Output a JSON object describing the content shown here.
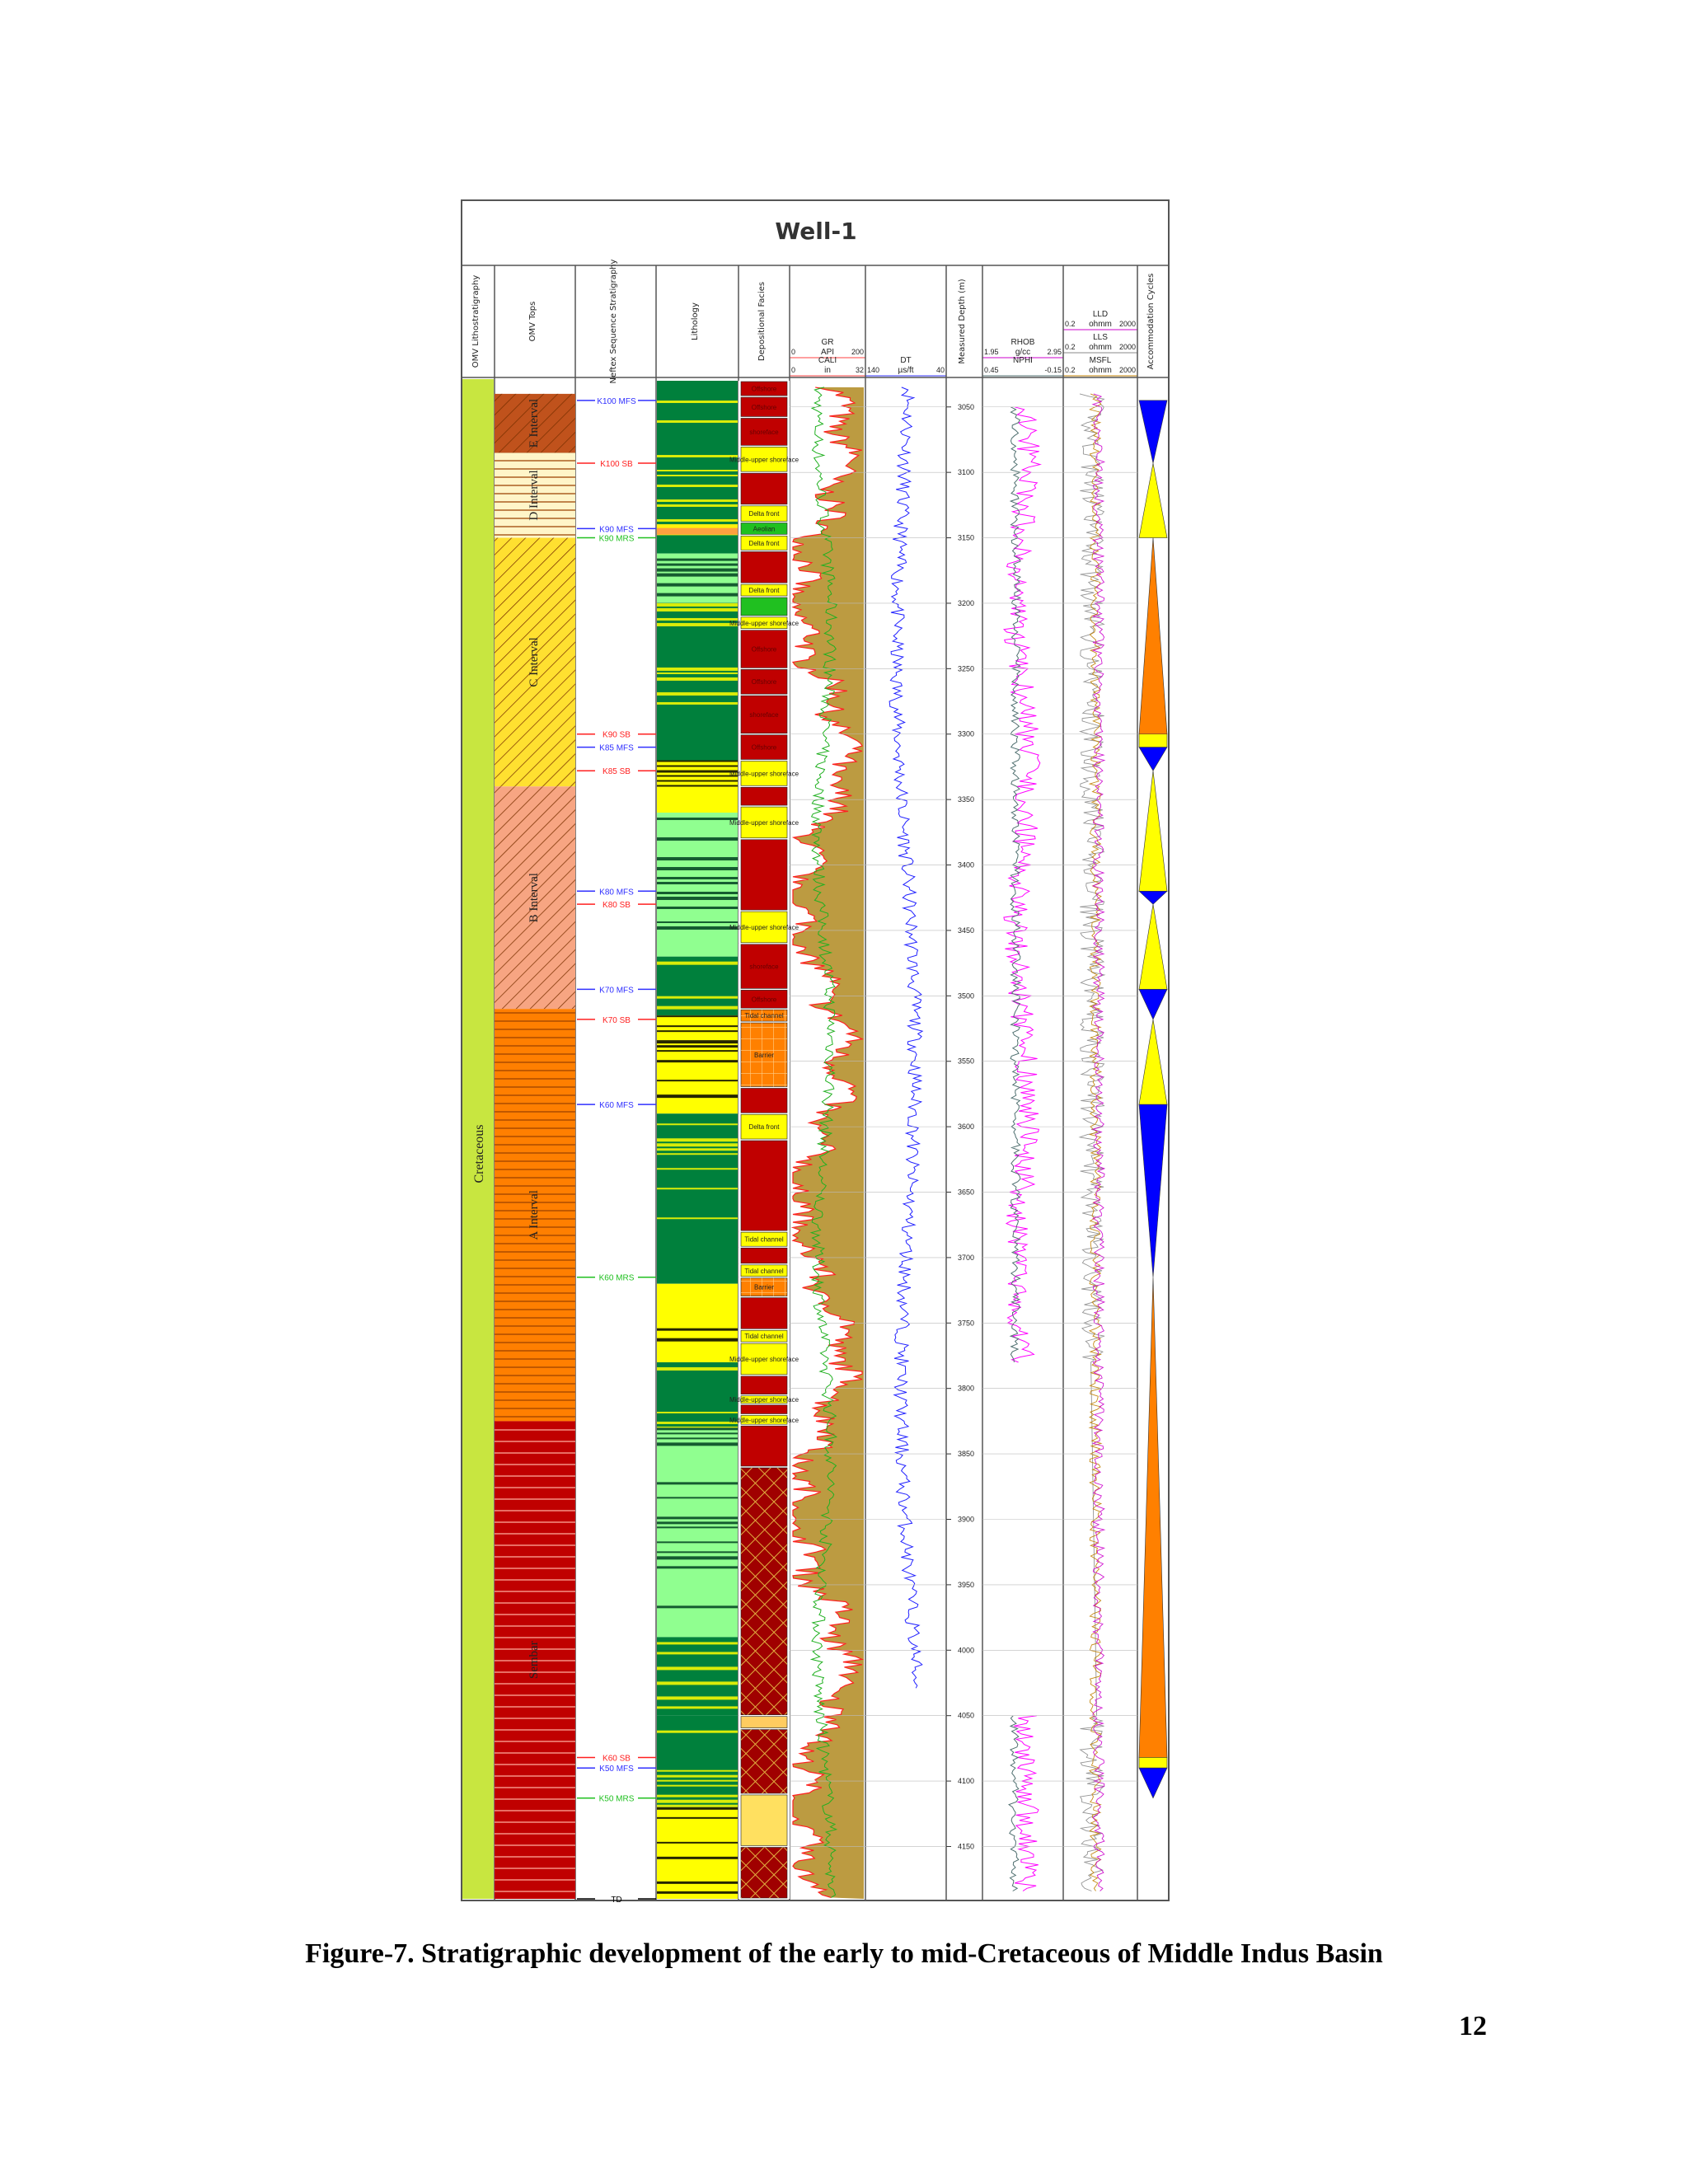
{
  "figure": {
    "title": "Well-1",
    "track_headers": [
      "OMV Lithostratigraphy",
      "OMV Tops",
      "Neftex Sequence Stratigraphy",
      "Lithology",
      "Depositional Facies",
      "",
      "",
      "Measured Depth (m)",
      "",
      "",
      "Accommodation Cycles"
    ],
    "curve_headers": {
      "gr": {
        "name": "GR",
        "unit": "API",
        "min": "0",
        "max": "200"
      },
      "cali": {
        "name": "CALI",
        "unit": "in",
        "min": "0",
        "max": "32"
      },
      "dt": {
        "name": "DT",
        "unit": "µs/ft",
        "min": "140",
        "max": "40"
      },
      "rhob": {
        "name": "RHOB",
        "unit": "g/cc",
        "min": "1.95",
        "max": "2.95"
      },
      "nphi": {
        "name": "NPHI",
        "unit": "",
        "min": "0.45",
        "max": "-0.15"
      },
      "lld": {
        "name": "LLD",
        "unit": "ohmm",
        "min": "0.2",
        "max": "2000"
      },
      "lls": {
        "name": "LLS",
        "unit": "ohmm",
        "min": "0.2",
        "max": "2000"
      },
      "msfl": {
        "name": "MSFL",
        "unit": "ohmm",
        "min": "0.2",
        "max": "2000"
      }
    },
    "lithostrat_label": "Cretaceous",
    "omv_tops": [
      {
        "label": "E Interval",
        "from": 3040,
        "to": 3085,
        "color": "#c0521c",
        "pattern": "hatch"
      },
      {
        "label": "D Interval",
        "from": 3085,
        "to": 3150,
        "color": "#fff5c8",
        "pattern": "lines"
      },
      {
        "label": "C Interval",
        "from": 3150,
        "to": 3340,
        "color": "#ffe030",
        "pattern": "hatch"
      },
      {
        "label": "B Interval",
        "from": 3340,
        "to": 3510,
        "color": "#f7a582",
        "pattern": "hatch"
      },
      {
        "label": "A Interval",
        "from": 3510,
        "to": 3825,
        "color": "#ff7f00",
        "pattern": "lines"
      },
      {
        "label": "Sembar",
        "from": 3825,
        "to": 4190,
        "color": "#c00000",
        "pattern": "lines"
      }
    ],
    "sequence_tops": [
      {
        "label": "K100 MFS",
        "depth": 3045,
        "color": "#3030ff"
      },
      {
        "label": "K100 SB",
        "depth": 3093,
        "color": "#ff2020"
      },
      {
        "label": "K90 MFS",
        "depth": 3143,
        "color": "#3030ff"
      },
      {
        "label": "K90 MRS",
        "depth": 3150,
        "color": "#20c020"
      },
      {
        "label": "K90 SB",
        "depth": 3300,
        "color": "#ff2020"
      },
      {
        "label": "K85 MFS",
        "depth": 3310,
        "color": "#3030ff"
      },
      {
        "label": "K85 SB",
        "depth": 3328,
        "color": "#ff2020"
      },
      {
        "label": "K80 MFS",
        "depth": 3420,
        "color": "#3030ff"
      },
      {
        "label": "K80 SB",
        "depth": 3430,
        "color": "#ff2020"
      },
      {
        "label": "K70 MFS",
        "depth": 3495,
        "color": "#3030ff"
      },
      {
        "label": "K70 SB",
        "depth": 3518,
        "color": "#ff2020"
      },
      {
        "label": "K60 MFS",
        "depth": 3583,
        "color": "#3030ff"
      },
      {
        "label": "K60 MRS",
        "depth": 3715,
        "color": "#20c020"
      },
      {
        "label": "K60 SB",
        "depth": 4082,
        "color": "#ff2020"
      },
      {
        "label": "K50 MFS",
        "depth": 4090,
        "color": "#3030ff"
      },
      {
        "label": "K50 MRS",
        "depth": 4113,
        "color": "#20c020"
      },
      {
        "label": "TD",
        "depth": 4190,
        "color": "#000000"
      }
    ],
    "lithology_blocks": [
      {
        "from": 3030,
        "to": 3140,
        "color": "#00803c"
      },
      {
        "from": 3140,
        "to": 3148,
        "color": "#ffa040"
      },
      {
        "from": 3148,
        "to": 3162,
        "color": "#00803c"
      },
      {
        "from": 3162,
        "to": 3200,
        "color": "#90ff90"
      },
      {
        "from": 3200,
        "to": 3320,
        "color": "#00803c"
      },
      {
        "from": 3320,
        "to": 3360,
        "color": "#ffff00"
      },
      {
        "from": 3360,
        "to": 3470,
        "color": "#90ff90"
      },
      {
        "from": 3470,
        "to": 3515,
        "color": "#00803c"
      },
      {
        "from": 3515,
        "to": 3590,
        "color": "#ffff00"
      },
      {
        "from": 3590,
        "to": 3720,
        "color": "#00803c"
      },
      {
        "from": 3720,
        "to": 3780,
        "color": "#ffff00"
      },
      {
        "from": 3780,
        "to": 3830,
        "color": "#00803c"
      },
      {
        "from": 3830,
        "to": 3990,
        "color": "#90ff90"
      },
      {
        "from": 3990,
        "to": 4050,
        "color": "#00803c"
      },
      {
        "from": 4050,
        "to": 4120,
        "color": "#00803c"
      },
      {
        "from": 4120,
        "to": 4190,
        "color": "#ffff00"
      }
    ],
    "facies": [
      {
        "label": "Offshore",
        "from": 3030,
        "to": 3042,
        "color": "#c00000"
      },
      {
        "label": "Offshore",
        "from": 3042,
        "to": 3058,
        "color": "#c00000"
      },
      {
        "label": "shoreface",
        "from": 3058,
        "to": 3080,
        "color": "#c00000"
      },
      {
        "label": "Middle-upper shoreface",
        "from": 3080,
        "to": 3100,
        "color": "#ffff00"
      },
      {
        "label": "",
        "from": 3100,
        "to": 3125,
        "color": "#c00000"
      },
      {
        "label": "Delta front",
        "from": 3125,
        "to": 3138,
        "color": "#ffff00"
      },
      {
        "label": "Aeolian",
        "from": 3138,
        "to": 3148,
        "color": "#20c020"
      },
      {
        "label": "Delta front",
        "from": 3148,
        "to": 3160,
        "color": "#ffff00"
      },
      {
        "label": "",
        "from": 3160,
        "to": 3185,
        "color": "#c00000"
      },
      {
        "label": "Delta front",
        "from": 3185,
        "to": 3195,
        "color": "#ffff00"
      },
      {
        "label": "",
        "from": 3195,
        "to": 3210,
        "color": "#20c020"
      },
      {
        "label": "Middle-upper shoreface",
        "from": 3210,
        "to": 3220,
        "color": "#ffff00"
      },
      {
        "label": "Offshore",
        "from": 3220,
        "to": 3250,
        "color": "#c00000"
      },
      {
        "label": "Offshore",
        "from": 3250,
        "to": 3270,
        "color": "#c00000"
      },
      {
        "label": "shoreface",
        "from": 3270,
        "to": 3300,
        "color": "#c00000"
      },
      {
        "label": "Offshore",
        "from": 3300,
        "to": 3320,
        "color": "#c00000"
      },
      {
        "label": "Middle-upper shoreface",
        "from": 3320,
        "to": 3340,
        "color": "#ffff00"
      },
      {
        "label": "",
        "from": 3340,
        "to": 3355,
        "color": "#c00000"
      },
      {
        "label": "Middle-upper shoreface",
        "from": 3355,
        "to": 3380,
        "color": "#ffff00"
      },
      {
        "label": "",
        "from": 3380,
        "to": 3435,
        "color": "#c00000"
      },
      {
        "label": "Middle-upper shoreface",
        "from": 3435,
        "to": 3460,
        "color": "#ffff00"
      },
      {
        "label": "shoreface",
        "from": 3460,
        "to": 3495,
        "color": "#c00000"
      },
      {
        "label": "Offshore",
        "from": 3495,
        "to": 3510,
        "color": "#c00000"
      },
      {
        "label": "Tidal channel",
        "from": 3510,
        "to": 3520,
        "color": "#ff8000"
      },
      {
        "label": "Barrier",
        "from": 3520,
        "to": 3570,
        "color": "#ff8000"
      },
      {
        "label": "",
        "from": 3570,
        "to": 3590,
        "color": "#c00000"
      },
      {
        "label": "Delta front",
        "from": 3590,
        "to": 3610,
        "color": "#ffff00"
      },
      {
        "label": "",
        "from": 3610,
        "to": 3680,
        "color": "#c00000"
      },
      {
        "label": "Tidal channel",
        "from": 3680,
        "to": 3692,
        "color": "#ffff00"
      },
      {
        "label": "",
        "from": 3692,
        "to": 3705,
        "color": "#c00000"
      },
      {
        "label": "Tidal channel",
        "from": 3705,
        "to": 3715,
        "color": "#ffff00"
      },
      {
        "label": "Barrier",
        "from": 3715,
        "to": 3730,
        "color": "#ff8000"
      },
      {
        "label": "",
        "from": 3730,
        "to": 3755,
        "color": "#c00000"
      },
      {
        "label": "Tidal channel",
        "from": 3755,
        "to": 3765,
        "color": "#ffff00"
      },
      {
        "label": "Middle-upper shoreface",
        "from": 3765,
        "to": 3790,
        "color": "#ffff00"
      },
      {
        "label": "",
        "from": 3790,
        "to": 3805,
        "color": "#c00000"
      },
      {
        "label": "Middle-upper shoreface",
        "from": 3805,
        "to": 3812,
        "color": "#ffff00"
      },
      {
        "label": "",
        "from": 3812,
        "to": 3820,
        "color": "#c00000"
      },
      {
        "label": "Middle-upper shoreface",
        "from": 3820,
        "to": 3828,
        "color": "#ffff00"
      },
      {
        "label": "",
        "from": 3828,
        "to": 3860,
        "color": "#c00000"
      },
      {
        "label": "",
        "from": 3860,
        "to": 4050,
        "color": "#a00000"
      },
      {
        "label": "",
        "from": 4050,
        "to": 4060,
        "color": "#ffcc60"
      },
      {
        "label": "",
        "from": 4060,
        "to": 4110,
        "color": "#a00000"
      },
      {
        "label": "",
        "from": 4110,
        "to": 4150,
        "color": "#ffe060"
      },
      {
        "label": "",
        "from": 4150,
        "to": 4190,
        "color": "#a00000"
      }
    ],
    "depth_ticks": [
      3050,
      3100,
      3150,
      3200,
      3250,
      3300,
      3350,
      3400,
      3450,
      3500,
      3550,
      3600,
      3650,
      3700,
      3750,
      3800,
      3850,
      3900,
      3950,
      4000,
      4050,
      4100,
      4150
    ],
    "depth_range": [
      3030,
      4190
    ],
    "cycles": [
      {
        "from": 3045,
        "to": 3093,
        "color": "#0000ff",
        "dir": "down"
      },
      {
        "from": 3093,
        "to": 3150,
        "color": "#ffff00",
        "dir": "up"
      },
      {
        "from": 3150,
        "to": 3300,
        "color": "#ff8000",
        "dir": "up"
      },
      {
        "from": 3300,
        "to": 3310,
        "color": "#ffff00",
        "dir": "band"
      },
      {
        "from": 3310,
        "to": 3328,
        "color": "#0000ff",
        "dir": "down"
      },
      {
        "from": 3328,
        "to": 3420,
        "color": "#ffff00",
        "dir": "up"
      },
      {
        "from": 3420,
        "to": 3430,
        "color": "#0000ff",
        "dir": "down"
      },
      {
        "from": 3430,
        "to": 3495,
        "color": "#ffff00",
        "dir": "up"
      },
      {
        "from": 3495,
        "to": 3518,
        "color": "#0000ff",
        "dir": "down"
      },
      {
        "from": 3518,
        "to": 3583,
        "color": "#ffff00",
        "dir": "up"
      },
      {
        "from": 3583,
        "to": 3715,
        "color": "#0000ff",
        "dir": "down"
      },
      {
        "from": 3715,
        "to": 4082,
        "color": "#ff8000",
        "dir": "up"
      },
      {
        "from": 4082,
        "to": 4090,
        "color": "#ffff00",
        "dir": "band"
      },
      {
        "from": 4090,
        "to": 4113,
        "color": "#0000ff",
        "dir": "down"
      }
    ]
  },
  "caption": "Figure-7. Stratigraphic development of the early to mid-Cretaceous of Middle Indus Basin",
  "page_number": "12"
}
